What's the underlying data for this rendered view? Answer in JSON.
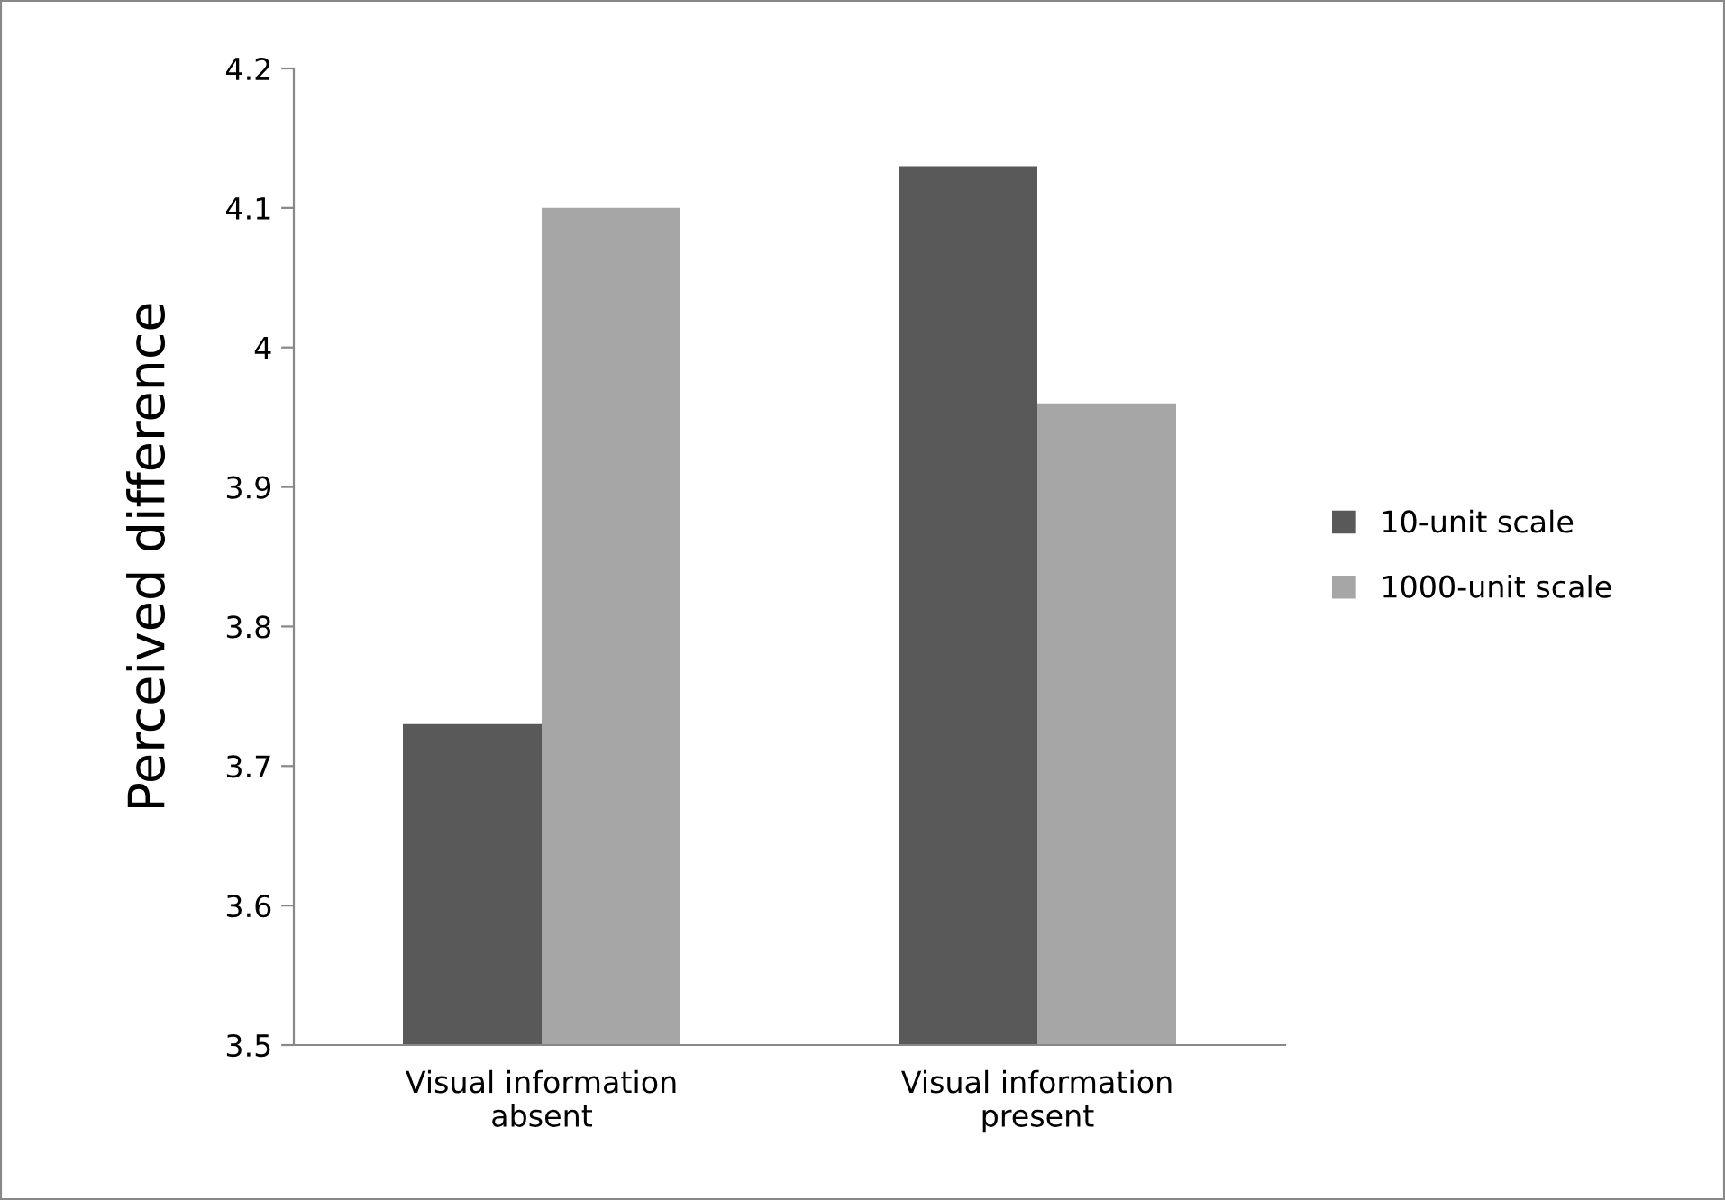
{
  "chart_data": {
    "type": "bar",
    "ylabel": "Perceived difference",
    "categories": [
      "Visual information\nabsent",
      "Visual information\npresent"
    ],
    "series": [
      {
        "name": "10-unit scale",
        "color": "#595959",
        "values": [
          3.73,
          4.13
        ]
      },
      {
        "name": "1000-unit scale",
        "color": "#a6a6a6",
        "values": [
          4.1,
          3.96
        ]
      }
    ],
    "ylim": [
      3.5,
      4.2
    ],
    "yticks": [
      3.5,
      3.6,
      3.7,
      3.8,
      3.9,
      {
        "value": 4.0,
        "label": "4"
      },
      4.1,
      4.2
    ],
    "grid": false,
    "legend": "right"
  }
}
